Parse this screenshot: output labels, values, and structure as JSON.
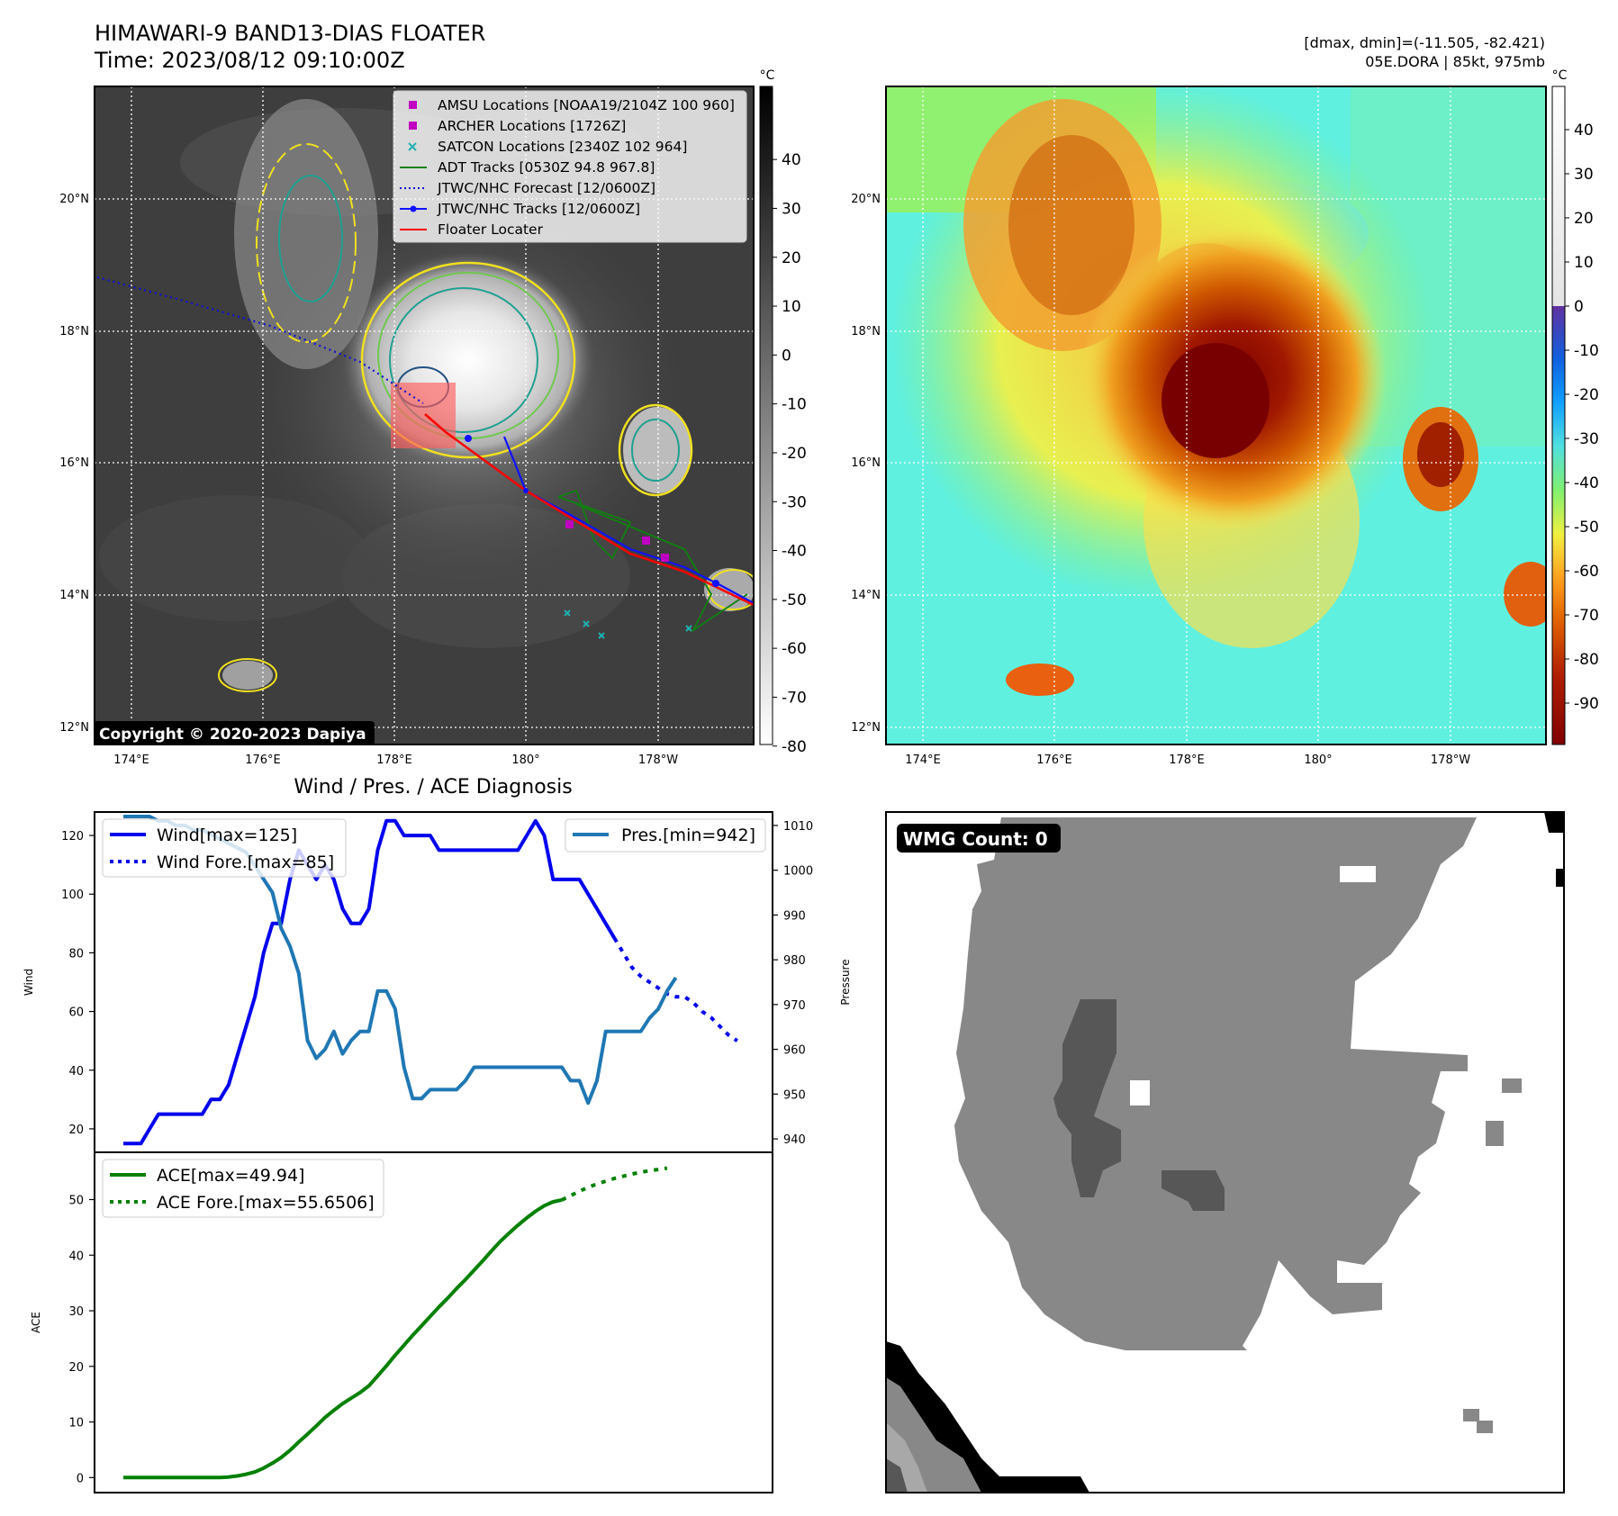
{
  "header": {
    "title": "HIMAWARI-9 BAND13-DIAS FLOATER",
    "time": "Time: 2023/08/12 09:10:00Z",
    "stats": "[dmax, dmin]=(-11.505, -82.421)",
    "storm": "05E.DORA | 85kt, 975mb",
    "copyright": "Copyright © 2020-2023 Dapiya"
  },
  "maps": {
    "lon_ticks": [
      "174°E",
      "176°E",
      "178°E",
      "180°",
      "178°W"
    ],
    "lat_ticks": [
      "20°N",
      "18°N",
      "16°N",
      "14°N",
      "12°N"
    ],
    "cbar_unit": "°C",
    "cbar_ticks": [
      40,
      30,
      20,
      10,
      0,
      -10,
      -20,
      -30,
      -40,
      -50,
      -60,
      -70,
      -80
    ],
    "cbar2_ticks": [
      40,
      30,
      20,
      10,
      0,
      -10,
      -20,
      -30,
      -40,
      -50,
      -60,
      -70,
      -80,
      -90
    ],
    "legend": [
      {
        "label": "AMSU Locations [NOAA19/2104Z 100 960]",
        "color": "#c000c0",
        "kind": "square"
      },
      {
        "label": "ARCHER Locations [1726Z]",
        "color": "#c000c0",
        "kind": "square"
      },
      {
        "label": "SATCON Locations [2340Z 102 964]",
        "color": "#20b0b0",
        "kind": "x"
      },
      {
        "label": "ADT Tracks [0530Z 94.8 967.8]",
        "color": "#108010",
        "kind": "line"
      },
      {
        "label": "JTWC/NHC Forecast [12/0600Z]",
        "color": "#1010d0",
        "kind": "dotted"
      },
      {
        "label": "JTWC/NHC Tracks [12/0600Z]",
        "color": "#1010ff",
        "kind": "dotline"
      },
      {
        "label": "Floater Locater",
        "color": "#ff0000",
        "kind": "line"
      }
    ]
  },
  "diag": {
    "title": "Wind / Pres. / ACE Diagnosis",
    "wind_label": "Wind",
    "pres_label": "Pressure",
    "ace_label": "ACE",
    "legend_wind": "Wind[max=125]",
    "legend_wind_fore": "Wind Fore.[max=85]",
    "legend_pres": "Pres.[min=942]",
    "legend_ace": "ACE[max=49.94]",
    "legend_ace_fore": "ACE Fore.[max=55.6506]",
    "wmg": "WMG Count: 0"
  },
  "chart_data": [
    {
      "type": "line",
      "axis": "wind",
      "ylim": [
        12,
        128
      ],
      "yticks": [
        20,
        40,
        60,
        80,
        100,
        120
      ],
      "series": [
        {
          "name": "Wind[max=125]",
          "color": "#0000ee",
          "values": [
            15,
            15,
            15,
            20,
            25,
            25,
            25,
            25,
            25,
            25,
            30,
            30,
            35,
            45,
            55,
            65,
            80,
            90,
            90,
            105,
            115,
            110,
            105,
            110,
            105,
            95,
            90,
            90,
            95,
            115,
            125,
            125,
            120,
            120,
            120,
            120,
            115,
            115,
            115,
            115,
            115,
            115,
            115,
            115,
            115,
            115,
            120,
            125,
            120,
            105,
            105,
            105,
            105,
            100,
            95,
            90,
            85
          ]
        },
        {
          "name": "Wind Fore.[max=85]",
          "color": "#0000ee",
          "dotted": true,
          "start": 56,
          "values": [
            85,
            80,
            75,
            72,
            70,
            68,
            66,
            65,
            65,
            63,
            60,
            58,
            55,
            52,
            50
          ]
        }
      ]
    },
    {
      "type": "line",
      "axis": "pressure",
      "ylim": [
        937,
        1013
      ],
      "yticks": [
        940,
        950,
        960,
        970,
        980,
        990,
        1000,
        1010
      ],
      "series": [
        {
          "name": "Pres.[min=942]",
          "color": "#1f77b4",
          "values": [
            1012,
            1012,
            1012,
            1012,
            1011,
            1011,
            1010,
            1010,
            1009,
            1009,
            1008,
            1007,
            1006,
            1005,
            1004,
            1001,
            998,
            995,
            987,
            983,
            977,
            962,
            958,
            960,
            964,
            959,
            962,
            964,
            964,
            973,
            973,
            969,
            956,
            949,
            949,
            951,
            951,
            951,
            951,
            953,
            956,
            956,
            956,
            956,
            956,
            956,
            956,
            956,
            956,
            956,
            956,
            953,
            953,
            948,
            953,
            964,
            964,
            964,
            964,
            964,
            967,
            969,
            973,
            976
          ]
        }
      ]
    },
    {
      "type": "line",
      "axis": "ace",
      "ylim": [
        -2.7,
        58.5
      ],
      "yticks": [
        0,
        10,
        20,
        30,
        40,
        50
      ],
      "series": [
        {
          "name": "ACE[max=49.94]",
          "color": "#008000",
          "values": [
            0,
            0,
            0,
            0,
            0,
            0,
            0,
            0,
            0,
            0,
            0,
            0,
            0.1,
            0.3,
            0.6,
            1.0,
            1.7,
            2.6,
            3.6,
            4.9,
            6.4,
            7.8,
            9.3,
            10.8,
            12.1,
            13.3,
            14.3,
            15.3,
            16.5,
            18.3,
            20.1,
            22.0,
            23.8,
            25.6,
            27.3,
            29.0,
            30.7,
            32.3,
            34.0,
            35.6,
            37.3,
            39.0,
            40.8,
            42.5,
            44.0,
            45.4,
            46.7,
            47.9,
            48.9,
            49.6,
            49.94
          ]
        },
        {
          "name": "ACE Fore.[max=55.6506]",
          "color": "#008000",
          "dotted": true,
          "start": 50,
          "values": [
            49.94,
            50.7,
            51.5,
            52.2,
            52.8,
            53.3,
            53.8,
            54.2,
            54.6,
            54.9,
            55.2,
            55.4,
            55.65
          ]
        }
      ]
    }
  ]
}
